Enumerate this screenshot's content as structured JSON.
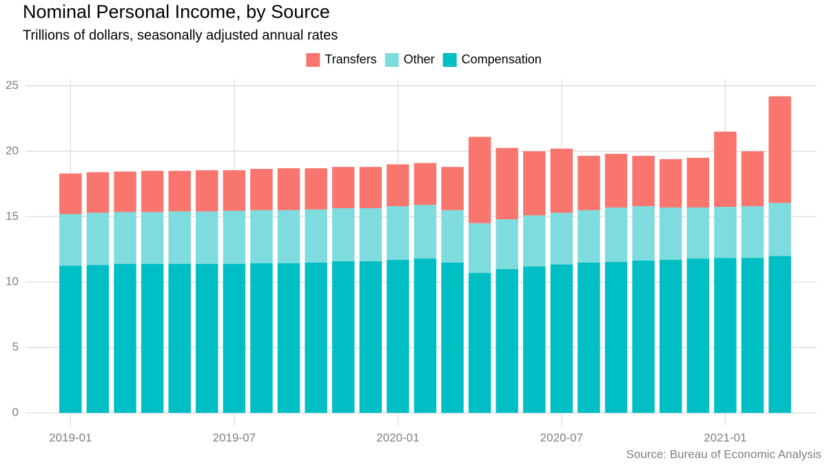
{
  "chart_data": {
    "type": "stacked_bar",
    "title": "Nominal Personal Income, by Source",
    "subtitle": "Trillions of dollars, seasonally adjusted annual rates",
    "caption": "Source: Bureau of Economic Analysis",
    "x": [
      "2019-01",
      "2019-02",
      "2019-03",
      "2019-04",
      "2019-05",
      "2019-06",
      "2019-07",
      "2019-08",
      "2019-09",
      "2019-10",
      "2019-11",
      "2019-12",
      "2020-01",
      "2020-02",
      "2020-03",
      "2020-04",
      "2020-05",
      "2020-06",
      "2020-07",
      "2020-08",
      "2020-09",
      "2020-10",
      "2020-11",
      "2020-12",
      "2021-01",
      "2021-02",
      "2021-03"
    ],
    "xticks": [
      "2019-01",
      "2019-07",
      "2020-01",
      "2020-07",
      "2021-01"
    ],
    "series": [
      {
        "name": "Transfers",
        "color": "#F8766D",
        "values": [
          3.1,
          3.1,
          3.1,
          3.15,
          3.1,
          3.15,
          3.1,
          3.15,
          3.2,
          3.15,
          3.15,
          3.15,
          3.2,
          3.2,
          3.3,
          6.6,
          5.45,
          4.9,
          4.9,
          4.15,
          4.1,
          3.85,
          3.7,
          3.8,
          5.75,
          4.2,
          8.15
        ]
      },
      {
        "name": "Other",
        "color": "#7FDCDE",
        "values": [
          3.95,
          4.0,
          3.95,
          3.95,
          4.0,
          4.0,
          4.05,
          4.05,
          4.05,
          4.05,
          4.05,
          4.05,
          4.1,
          4.1,
          4.0,
          3.8,
          3.8,
          3.9,
          3.95,
          4.0,
          4.15,
          4.15,
          4.0,
          3.9,
          3.9,
          3.95,
          4.05
        ]
      },
      {
        "name": "Compensation",
        "color": "#00BFC4",
        "values": [
          11.25,
          11.3,
          11.4,
          11.4,
          11.4,
          11.4,
          11.4,
          11.45,
          11.45,
          11.5,
          11.6,
          11.6,
          11.7,
          11.8,
          11.5,
          10.7,
          11.0,
          11.2,
          11.35,
          11.5,
          11.55,
          11.65,
          11.7,
          11.8,
          11.85,
          11.85,
          12.0
        ]
      }
    ],
    "ylim": [
      -1,
      25.5
    ],
    "yticks": [
      0,
      5,
      10,
      15,
      20,
      25
    ],
    "grid": true,
    "legend": "top"
  }
}
